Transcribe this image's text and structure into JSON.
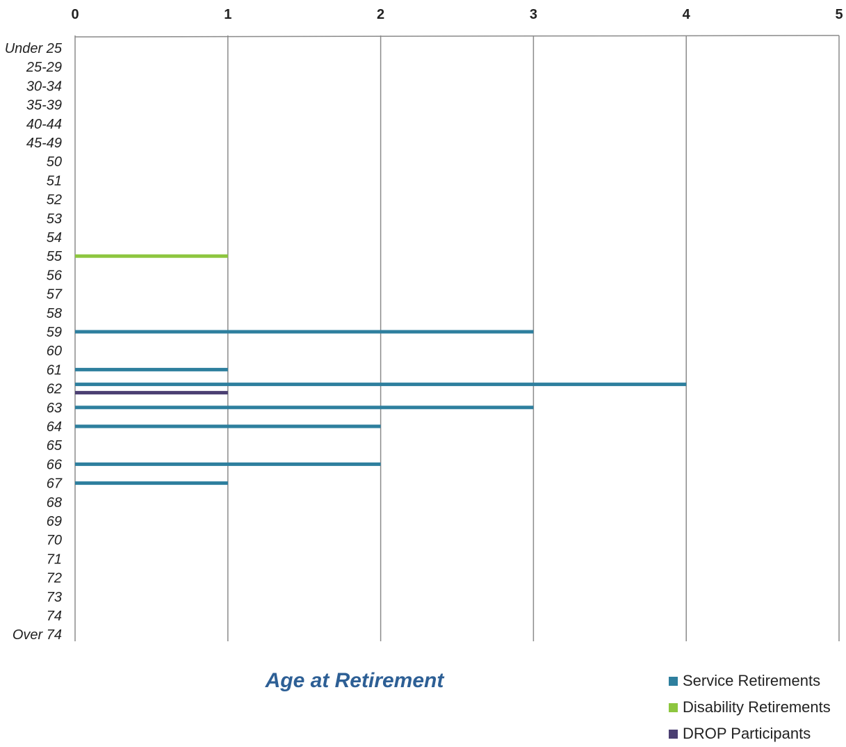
{
  "chart_data": {
    "type": "bar",
    "orientation": "horizontal",
    "title": "",
    "xlabel": "",
    "ylabel": "Age at Retirement",
    "xlim": [
      0,
      5
    ],
    "x_ticks": [
      "0",
      "1",
      "2",
      "3",
      "4",
      "5"
    ],
    "x_axis_position": "top",
    "grid": "vertical",
    "legend_position": "bottom-right",
    "categories": [
      "Under 25",
      "25-29",
      "30-34",
      "35-39",
      "40-44",
      "45-49",
      "50",
      "51",
      "52",
      "53",
      "54",
      "55",
      "56",
      "57",
      "58",
      "59",
      "60",
      "61",
      "62",
      "63",
      "64",
      "65",
      "66",
      "67",
      "68",
      "69",
      "70",
      "71",
      "72",
      "73",
      "74",
      "Over 74"
    ],
    "series": [
      {
        "name": "Service Retirements",
        "color": "#2e7f9e",
        "values": [
          0,
          0,
          0,
          0,
          0,
          0,
          0,
          0,
          0,
          0,
          0,
          0,
          0,
          0,
          0,
          3,
          0,
          1,
          4,
          3,
          2,
          0,
          2,
          1,
          0,
          0,
          0,
          0,
          0,
          0,
          0,
          0
        ]
      },
      {
        "name": "Disability Retirements",
        "color": "#8dc63f",
        "values": [
          0,
          0,
          0,
          0,
          0,
          0,
          0,
          0,
          0,
          0,
          0,
          1,
          0,
          0,
          0,
          0,
          0,
          0,
          0,
          0,
          0,
          0,
          0,
          0,
          0,
          0,
          0,
          0,
          0,
          0,
          0,
          0
        ]
      },
      {
        "name": "DROP Participants",
        "color": "#4b3f72",
        "values": [
          0,
          0,
          0,
          0,
          0,
          0,
          0,
          0,
          0,
          0,
          0,
          0,
          0,
          0,
          0,
          0,
          0,
          0,
          1,
          0,
          0,
          0,
          0,
          0,
          0,
          0,
          0,
          0,
          0,
          0,
          0,
          0
        ]
      }
    ]
  }
}
